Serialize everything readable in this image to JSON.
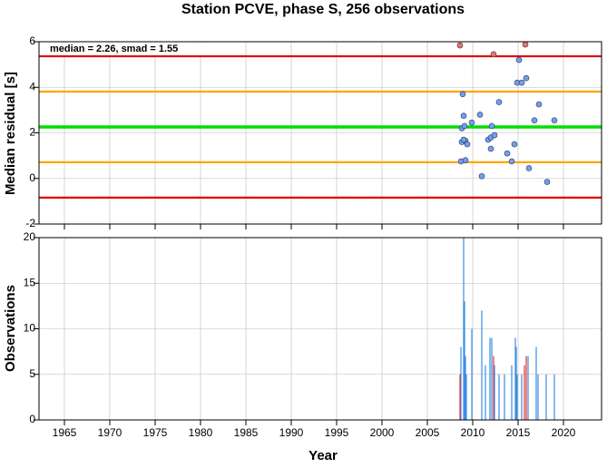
{
  "title": "Station PCVE, phase S, 256 observations",
  "chart_data": [
    {
      "type": "scatter",
      "ylabel": "Median residual [s]",
      "annotation": "median = 2.26, smad = 1.55",
      "xlim": [
        1962.2,
        2024.2
      ],
      "xticks": [
        1965,
        1970,
        1975,
        1980,
        1985,
        1990,
        1995,
        2000,
        2005,
        2010,
        2015,
        2020
      ],
      "ylim": [
        -2,
        6
      ],
      "yticks": [
        -2,
        0,
        2,
        4,
        6
      ],
      "grid": true,
      "hlines": [
        {
          "value": 2.26,
          "color": "#00e000"
        },
        {
          "value": 3.81,
          "color": "#ffa500"
        },
        {
          "value": 0.71,
          "color": "#ffa500"
        },
        {
          "value": 5.36,
          "color": "#e00000"
        },
        {
          "value": -0.84,
          "color": "#e00000"
        }
      ],
      "series": [
        {
          "color": "#6ea0f0",
          "x": [
            2008.9,
            2009.0,
            2008.8,
            2009.1,
            2008.8,
            2009.2,
            2009.4,
            2009.0,
            2008.7,
            2009.2,
            2009.9,
            2010.8,
            2011.0,
            2011.7,
            2012.0,
            2012.1,
            2012.4,
            2012.0,
            2012.9,
            2013.8,
            2014.3,
            2014.6,
            2014.9,
            2015.1,
            2015.4,
            2015.9,
            2016.2,
            2016.8,
            2017.3,
            2018.2,
            2019.0
          ],
          "values": [
            3.7,
            2.75,
            2.2,
            2.3,
            1.6,
            1.65,
            1.5,
            1.7,
            0.75,
            0.8,
            2.45,
            2.8,
            0.1,
            1.7,
            1.8,
            2.3,
            1.9,
            1.3,
            3.35,
            1.1,
            0.75,
            1.5,
            4.2,
            5.2,
            4.2,
            4.4,
            0.45,
            2.55,
            3.25,
            -0.15,
            2.55
          ]
        },
        {
          "color": "#f07060",
          "x": [
            2008.6,
            2012.3,
            2015.8
          ],
          "values": [
            5.84,
            5.45,
            5.88
          ]
        }
      ]
    },
    {
      "type": "bar",
      "ylabel": "Observations",
      "xlabel": "Year",
      "xlim": [
        1962.2,
        2024.2
      ],
      "xticks": [
        1965,
        1970,
        1975,
        1980,
        1985,
        1990,
        1995,
        2000,
        2005,
        2010,
        2015,
        2020
      ],
      "ylim": [
        0,
        20
      ],
      "yticks": [
        0,
        5,
        10,
        15,
        20
      ],
      "grid": true,
      "series": [
        {
          "color": "#3a8ee6",
          "x": [
            2008.7,
            2009.0,
            2009.1,
            2009.2,
            2009.3,
            2009.9,
            2011.0,
            2011.4,
            2011.9,
            2012.1,
            2012.4,
            2012.9,
            2013.5,
            2014.3,
            2014.7,
            2014.8,
            2014.9,
            2015.4,
            2016.1,
            2017.0,
            2017.2,
            2018.1,
            2019.0
          ],
          "values": [
            8,
            20,
            13,
            7,
            5,
            10,
            12,
            6,
            9,
            9,
            6,
            5,
            5,
            6,
            9,
            8,
            5,
            5,
            7,
            8,
            5,
            5,
            5
          ]
        },
        {
          "color": "#e83030",
          "x": [
            2008.6,
            2012.3,
            2015.7,
            2015.9
          ],
          "values": [
            5,
            7,
            6,
            7
          ]
        }
      ]
    }
  ]
}
